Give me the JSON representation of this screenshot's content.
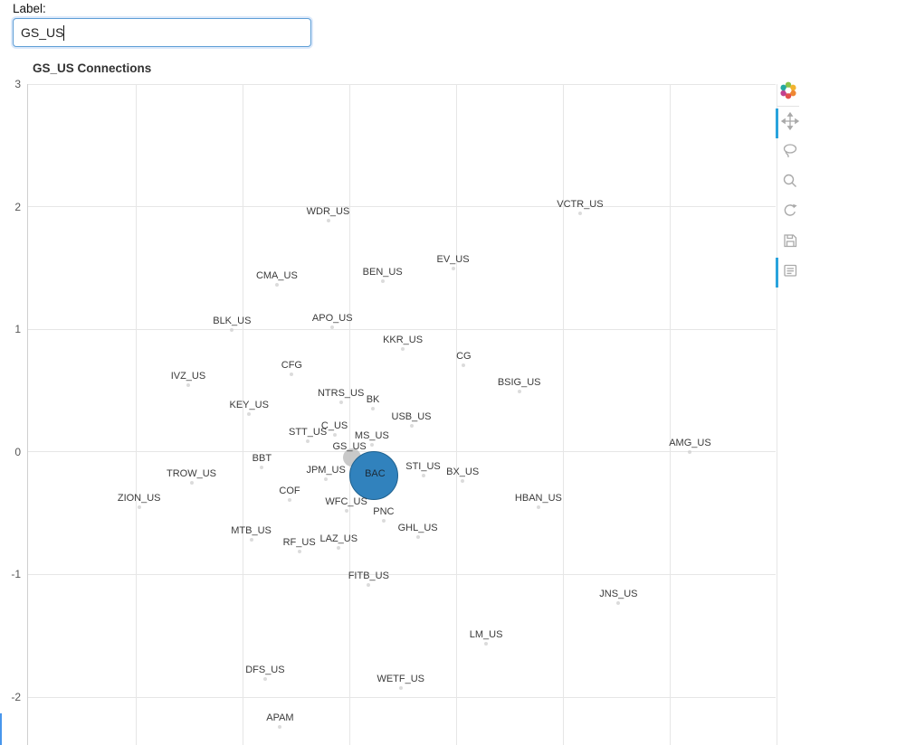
{
  "form": {
    "label": "Label:",
    "input_value": "GS_US",
    "placeholder": ""
  },
  "toolbar": {
    "accent_color": "#29a3dc",
    "icon_color": "#a9a9a9",
    "tools": [
      {
        "name": "bokeh-logo",
        "active": false
      },
      {
        "name": "pan-tool",
        "active": true
      },
      {
        "name": "lasso-select-tool",
        "active": false
      },
      {
        "name": "wheel-zoom-tool",
        "active": false
      },
      {
        "name": "reset-tool",
        "active": false
      },
      {
        "name": "save-tool",
        "active": false
      },
      {
        "name": "hover-tool",
        "active": true
      }
    ]
  },
  "chart_data": {
    "type": "scatter",
    "title": "GS_US Connections",
    "xlabel": "",
    "ylabel": "",
    "xlim": [
      -3.01,
      4.0
    ],
    "ylim": [
      -2.39,
      3.0
    ],
    "grid": true,
    "x_gridlines": [
      -2,
      -1,
      0,
      1,
      2,
      3,
      4
    ],
    "y_ticks": [
      3,
      2,
      1,
      0,
      -1,
      -2
    ],
    "default_marker": {
      "size": 4,
      "color": "#cccccc",
      "opacity": 0.7,
      "dy": 10
    },
    "points": [
      {
        "label": "WDR_US",
        "x": -0.2,
        "y": 1.96
      },
      {
        "label": "VCTR_US",
        "x": 2.16,
        "y": 2.02
      },
      {
        "label": "EV_US",
        "x": 0.97,
        "y": 1.57
      },
      {
        "label": "BEN_US",
        "x": 0.31,
        "y": 1.47
      },
      {
        "label": "CMA_US",
        "x": -0.68,
        "y": 1.44
      },
      {
        "label": "APO_US",
        "x": -0.16,
        "y": 1.09
      },
      {
        "label": "BLK_US",
        "x": -1.1,
        "y": 1.07
      },
      {
        "label": "KKR_US",
        "x": 0.5,
        "y": 0.91
      },
      {
        "label": "CG",
        "x": 1.07,
        "y": 0.78
      },
      {
        "label": "CFG",
        "x": -0.54,
        "y": 0.71
      },
      {
        "label": "IVZ_US",
        "x": -1.51,
        "y": 0.62
      },
      {
        "label": "BSIG_US",
        "x": 1.59,
        "y": 0.57
      },
      {
        "label": "NTRS_US",
        "x": -0.08,
        "y": 0.48
      },
      {
        "label": "BK",
        "x": 0.22,
        "y": 0.43
      },
      {
        "label": "KEY_US",
        "x": -0.94,
        "y": 0.38
      },
      {
        "label": "USB_US",
        "x": 0.58,
        "y": 0.29
      },
      {
        "label": "C_US",
        "x": -0.14,
        "y": 0.21
      },
      {
        "label": "STT_US",
        "x": -0.39,
        "y": 0.16
      },
      {
        "label": "MS_US",
        "x": 0.21,
        "y": 0.13
      },
      {
        "label": "GS_US",
        "x": 0.0,
        "y": 0.04,
        "marker": {
          "size": 20,
          "color": "#c3c3c3",
          "opacity": 0.9,
          "dx": 3,
          "dy": 12
        }
      },
      {
        "label": "AMG_US",
        "x": 3.19,
        "y": 0.07
      },
      {
        "label": "BBT",
        "x": -0.82,
        "y": -0.05
      },
      {
        "label": "STI_US",
        "x": 0.69,
        "y": -0.12
      },
      {
        "label": "JPM_US",
        "x": -0.22,
        "y": -0.15
      },
      {
        "label": "BX_US",
        "x": 1.06,
        "y": -0.16
      },
      {
        "label": "TROW_US",
        "x": -1.48,
        "y": -0.18
      },
      {
        "label": "BAC",
        "x": 0.24,
        "y": -0.18,
        "label_inside": true,
        "label_color": "#1c2a36",
        "marker": {
          "size": 54,
          "color": "#3182bd",
          "border": "#1f618f",
          "opacity": 1,
          "dx": -1,
          "dy": 2
        }
      },
      {
        "label": "COF",
        "x": -0.56,
        "y": -0.32
      },
      {
        "label": "ZION_US",
        "x": -1.97,
        "y": -0.38
      },
      {
        "label": "HBAN_US",
        "x": 1.77,
        "y": -0.38
      },
      {
        "label": "WFC_US",
        "x": -0.03,
        "y": -0.41
      },
      {
        "label": "PNC",
        "x": 0.32,
        "y": -0.49
      },
      {
        "label": "GHL_US",
        "x": 0.64,
        "y": -0.62
      },
      {
        "label": "MTB_US",
        "x": -0.92,
        "y": -0.64
      },
      {
        "label": "LAZ_US",
        "x": -0.1,
        "y": -0.71
      },
      {
        "label": "RF_US",
        "x": -0.47,
        "y": -0.74
      },
      {
        "label": "FITB_US",
        "x": 0.18,
        "y": -1.01
      },
      {
        "label": "JNS_US",
        "x": 2.52,
        "y": -1.16
      },
      {
        "label": "LM_US",
        "x": 1.28,
        "y": -1.49
      },
      {
        "label": "DFS_US",
        "x": -0.79,
        "y": -1.78
      },
      {
        "label": "WETF_US",
        "x": 0.48,
        "y": -1.85
      },
      {
        "label": "APAM",
        "x": -0.65,
        "y": -2.17
      }
    ]
  }
}
